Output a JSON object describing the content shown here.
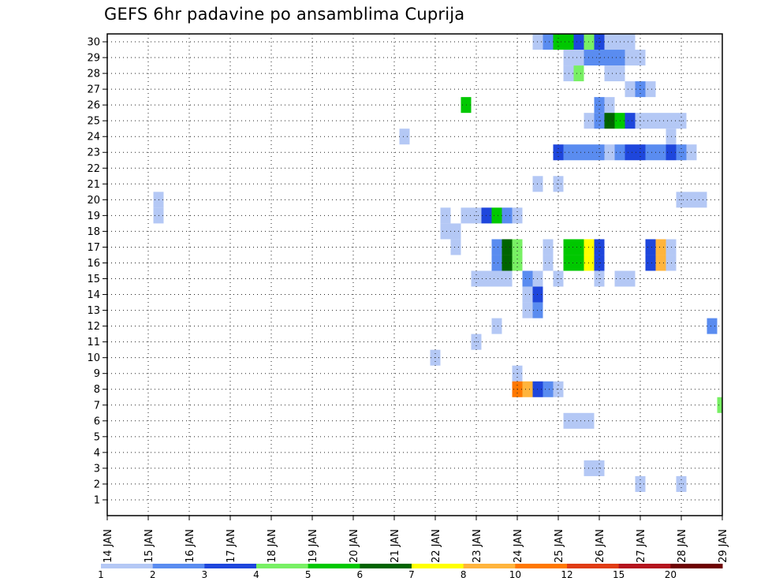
{
  "chart_data": {
    "type": "heatmap",
    "title": "GEFS 6hr padavine po ansamblima Cuprija",
    "x_ticks": [
      "14 JAN",
      "15 JAN",
      "16 JAN",
      "17 JAN",
      "18 JAN",
      "19 JAN",
      "20 JAN",
      "21 JAN",
      "22 JAN",
      "23 JAN",
      "24 JAN",
      "25 JAN",
      "26 JAN",
      "27 JAN",
      "28 JAN",
      "29 JAN"
    ],
    "y_ticks": [
      "1",
      "2",
      "3",
      "4",
      "5",
      "6",
      "7",
      "8",
      "9",
      "10",
      "11",
      "12",
      "13",
      "14",
      "15",
      "16",
      "17",
      "18",
      "19",
      "20",
      "21",
      "22",
      "23",
      "24",
      "25",
      "26",
      "27",
      "28",
      "29",
      "30"
    ],
    "x_step_hours": 6,
    "x_range_steps": [
      0,
      60
    ],
    "y_range": [
      0,
      30
    ],
    "grid": true,
    "colorbar": {
      "labels": [
        "1",
        "2",
        "3",
        "4",
        "5",
        "6",
        "7",
        "8",
        "10",
        "12",
        "15",
        "20"
      ],
      "colors": [
        "#b4c8f5",
        "#5a8cf0",
        "#1e46dc",
        "#78f064",
        "#00c800",
        "#006400",
        "#ffff00",
        "#ffb43c",
        "#ff7800",
        "#e03c14",
        "#b4141e",
        "#6e0000"
      ]
    },
    "cells": [
      {
        "m": 30,
        "s": 42,
        "c": 0
      },
      {
        "m": 30,
        "s": 43,
        "c": 1
      },
      {
        "m": 30,
        "s": 44,
        "c": 4
      },
      {
        "m": 30,
        "s": 45,
        "c": 4
      },
      {
        "m": 30,
        "s": 46,
        "c": 2
      },
      {
        "m": 30,
        "s": 47,
        "c": 3
      },
      {
        "m": 30,
        "s": 48,
        "c": 2
      },
      {
        "m": 30,
        "s": 49,
        "c": 0
      },
      {
        "m": 30,
        "s": 50,
        "c": 0
      },
      {
        "m": 30,
        "s": 51,
        "c": 0
      },
      {
        "m": 29,
        "s": 45,
        "c": 0
      },
      {
        "m": 29,
        "s": 46,
        "c": 0
      },
      {
        "m": 29,
        "s": 47,
        "c": 1
      },
      {
        "m": 29,
        "s": 48,
        "c": 1
      },
      {
        "m": 29,
        "s": 49,
        "c": 1
      },
      {
        "m": 29,
        "s": 50,
        "c": 1
      },
      {
        "m": 29,
        "s": 51,
        "c": 0
      },
      {
        "m": 29,
        "s": 52,
        "c": 0
      },
      {
        "m": 28,
        "s": 45,
        "c": 0
      },
      {
        "m": 28,
        "s": 46,
        "c": 3
      },
      {
        "m": 28,
        "s": 49,
        "c": 0
      },
      {
        "m": 28,
        "s": 50,
        "c": 0
      },
      {
        "m": 27,
        "s": 51,
        "c": 0
      },
      {
        "m": 27,
        "s": 52,
        "c": 1
      },
      {
        "m": 27,
        "s": 53,
        "c": 0
      },
      {
        "m": 26,
        "s": 35,
        "c": 4
      },
      {
        "m": 26,
        "s": 48,
        "c": 1
      },
      {
        "m": 26,
        "s": 49,
        "c": 0
      },
      {
        "m": 25,
        "s": 47,
        "c": 0
      },
      {
        "m": 25,
        "s": 48,
        "c": 1
      },
      {
        "m": 25,
        "s": 49,
        "c": 5
      },
      {
        "m": 25,
        "s": 50,
        "c": 4
      },
      {
        "m": 25,
        "s": 51,
        "c": 2
      },
      {
        "m": 25,
        "s": 52,
        "c": 0
      },
      {
        "m": 25,
        "s": 53,
        "c": 0
      },
      {
        "m": 25,
        "s": 54,
        "c": 0
      },
      {
        "m": 25,
        "s": 55,
        "c": 0
      },
      {
        "m": 25,
        "s": 56,
        "c": 0
      },
      {
        "m": 24,
        "s": 29,
        "c": 0
      },
      {
        "m": 24,
        "s": 55,
        "c": 0
      },
      {
        "m": 23,
        "s": 44,
        "c": 2
      },
      {
        "m": 23,
        "s": 45,
        "c": 1
      },
      {
        "m": 23,
        "s": 46,
        "c": 1
      },
      {
        "m": 23,
        "s": 47,
        "c": 1
      },
      {
        "m": 23,
        "s": 48,
        "c": 1
      },
      {
        "m": 23,
        "s": 49,
        "c": 0
      },
      {
        "m": 23,
        "s": 50,
        "c": 1
      },
      {
        "m": 23,
        "s": 51,
        "c": 2
      },
      {
        "m": 23,
        "s": 52,
        "c": 2
      },
      {
        "m": 23,
        "s": 53,
        "c": 1
      },
      {
        "m": 23,
        "s": 54,
        "c": 1
      },
      {
        "m": 23,
        "s": 55,
        "c": 2
      },
      {
        "m": 23,
        "s": 56,
        "c": 1
      },
      {
        "m": 23,
        "s": 57,
        "c": 0
      },
      {
        "m": 21,
        "s": 42,
        "c": 0
      },
      {
        "m": 21,
        "s": 44,
        "c": 0
      },
      {
        "m": 20,
        "s": 5,
        "c": 0
      },
      {
        "m": 20,
        "s": 56,
        "c": 0
      },
      {
        "m": 20,
        "s": 57,
        "c": 0
      },
      {
        "m": 20,
        "s": 58,
        "c": 0
      },
      {
        "m": 19,
        "s": 5,
        "c": 0
      },
      {
        "m": 19,
        "s": 33,
        "c": 0
      },
      {
        "m": 19,
        "s": 35,
        "c": 0
      },
      {
        "m": 19,
        "s": 36,
        "c": 0
      },
      {
        "m": 19,
        "s": 37,
        "c": 2
      },
      {
        "m": 19,
        "s": 38,
        "c": 4
      },
      {
        "m": 19,
        "s": 39,
        "c": 1
      },
      {
        "m": 19,
        "s": 40,
        "c": 0
      },
      {
        "m": 18,
        "s": 33,
        "c": 0
      },
      {
        "m": 18,
        "s": 34,
        "c": 0
      },
      {
        "m": 17,
        "s": 34,
        "c": 0
      },
      {
        "m": 17,
        "s": 38,
        "c": 1
      },
      {
        "m": 17,
        "s": 39,
        "c": 5
      },
      {
        "m": 17,
        "s": 40,
        "c": 3
      },
      {
        "m": 17,
        "s": 43,
        "c": 0
      },
      {
        "m": 17,
        "s": 45,
        "c": 4
      },
      {
        "m": 17,
        "s": 46,
        "c": 4
      },
      {
        "m": 17,
        "s": 47,
        "c": 6
      },
      {
        "m": 17,
        "s": 48,
        "c": 2
      },
      {
        "m": 17,
        "s": 53,
        "c": 2
      },
      {
        "m": 17,
        "s": 54,
        "c": 7
      },
      {
        "m": 17,
        "s": 55,
        "c": 0
      },
      {
        "m": 16,
        "s": 38,
        "c": 1
      },
      {
        "m": 16,
        "s": 39,
        "c": 5
      },
      {
        "m": 16,
        "s": 40,
        "c": 3
      },
      {
        "m": 16,
        "s": 43,
        "c": 0
      },
      {
        "m": 16,
        "s": 45,
        "c": 4
      },
      {
        "m": 16,
        "s": 46,
        "c": 4
      },
      {
        "m": 16,
        "s": 47,
        "c": 6
      },
      {
        "m": 16,
        "s": 48,
        "c": 2
      },
      {
        "m": 16,
        "s": 53,
        "c": 2
      },
      {
        "m": 16,
        "s": 54,
        "c": 7
      },
      {
        "m": 16,
        "s": 55,
        "c": 0
      },
      {
        "m": 15,
        "s": 36,
        "c": 0
      },
      {
        "m": 15,
        "s": 37,
        "c": 0
      },
      {
        "m": 15,
        "s": 38,
        "c": 0
      },
      {
        "m": 15,
        "s": 39,
        "c": 0
      },
      {
        "m": 15,
        "s": 41,
        "c": 1
      },
      {
        "m": 15,
        "s": 42,
        "c": 0
      },
      {
        "m": 15,
        "s": 44,
        "c": 0
      },
      {
        "m": 15,
        "s": 48,
        "c": 0
      },
      {
        "m": 15,
        "s": 50,
        "c": 0
      },
      {
        "m": 15,
        "s": 51,
        "c": 0
      },
      {
        "m": 14,
        "s": 41,
        "c": 0
      },
      {
        "m": 14,
        "s": 42,
        "c": 2
      },
      {
        "m": 13,
        "s": 41,
        "c": 0
      },
      {
        "m": 13,
        "s": 42,
        "c": 1
      },
      {
        "m": 12,
        "s": 38,
        "c": 0
      },
      {
        "m": 12,
        "s": 59,
        "c": 1
      },
      {
        "m": 11,
        "s": 36,
        "c": 0
      },
      {
        "m": 10,
        "s": 32,
        "c": 0
      },
      {
        "m": 9,
        "s": 40,
        "c": 0
      },
      {
        "m": 8,
        "s": 40,
        "c": 8
      },
      {
        "m": 8,
        "s": 41,
        "c": 7
      },
      {
        "m": 8,
        "s": 42,
        "c": 2
      },
      {
        "m": 8,
        "s": 43,
        "c": 1
      },
      {
        "m": 8,
        "s": 44,
        "c": 0
      },
      {
        "m": 7,
        "s": 60,
        "c": 3
      },
      {
        "m": 6,
        "s": 45,
        "c": 0
      },
      {
        "m": 6,
        "s": 46,
        "c": 0
      },
      {
        "m": 6,
        "s": 47,
        "c": 0
      },
      {
        "m": 3,
        "s": 47,
        "c": 0
      },
      {
        "m": 3,
        "s": 48,
        "c": 0
      },
      {
        "m": 2,
        "s": 52,
        "c": 0
      },
      {
        "m": 2,
        "s": 56,
        "c": 0
      }
    ]
  }
}
